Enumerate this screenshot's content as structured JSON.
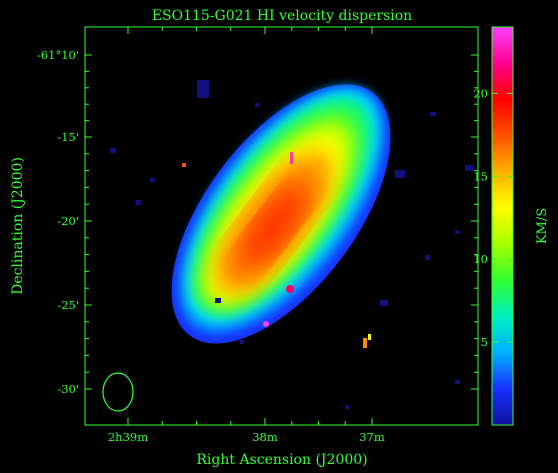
{
  "figure": {
    "title": "ESO115-G021  HI velocity dispersion",
    "xlabel": "Right Ascension (J2000)",
    "ylabel": "Declination (J2000)",
    "colorbar_label": "KM/S",
    "x_ticks": [
      {
        "label": "2h39m"
      },
      {
        "label": "38m"
      },
      {
        "label": "37m"
      }
    ],
    "y_ticks": [
      {
        "label": "-61°10'"
      },
      {
        "label": "-15'"
      },
      {
        "label": "-20'"
      },
      {
        "label": "-25'"
      },
      {
        "label": "-30'"
      }
    ],
    "colorbar": {
      "min": 0,
      "max": 24,
      "tick_values": [
        5,
        10,
        15,
        20
      ],
      "tick_labels": [
        "5",
        "10",
        "15",
        "20"
      ],
      "stops": [
        "#1010a0",
        "#1830ff",
        "#00b0ff",
        "#00f0c0",
        "#30ff30",
        "#a8ff00",
        "#ffff00",
        "#ffb000",
        "#ff5000",
        "#ff0000",
        "#ff0090",
        "#ff40ff"
      ]
    },
    "beam": {
      "shape": "ellipse",
      "color": "#33ff33"
    },
    "colors": {
      "axis": "#33ff33",
      "background": "#000000",
      "galaxy_edge": "#1830ff",
      "galaxy_core": "#ff3000"
    }
  }
}
